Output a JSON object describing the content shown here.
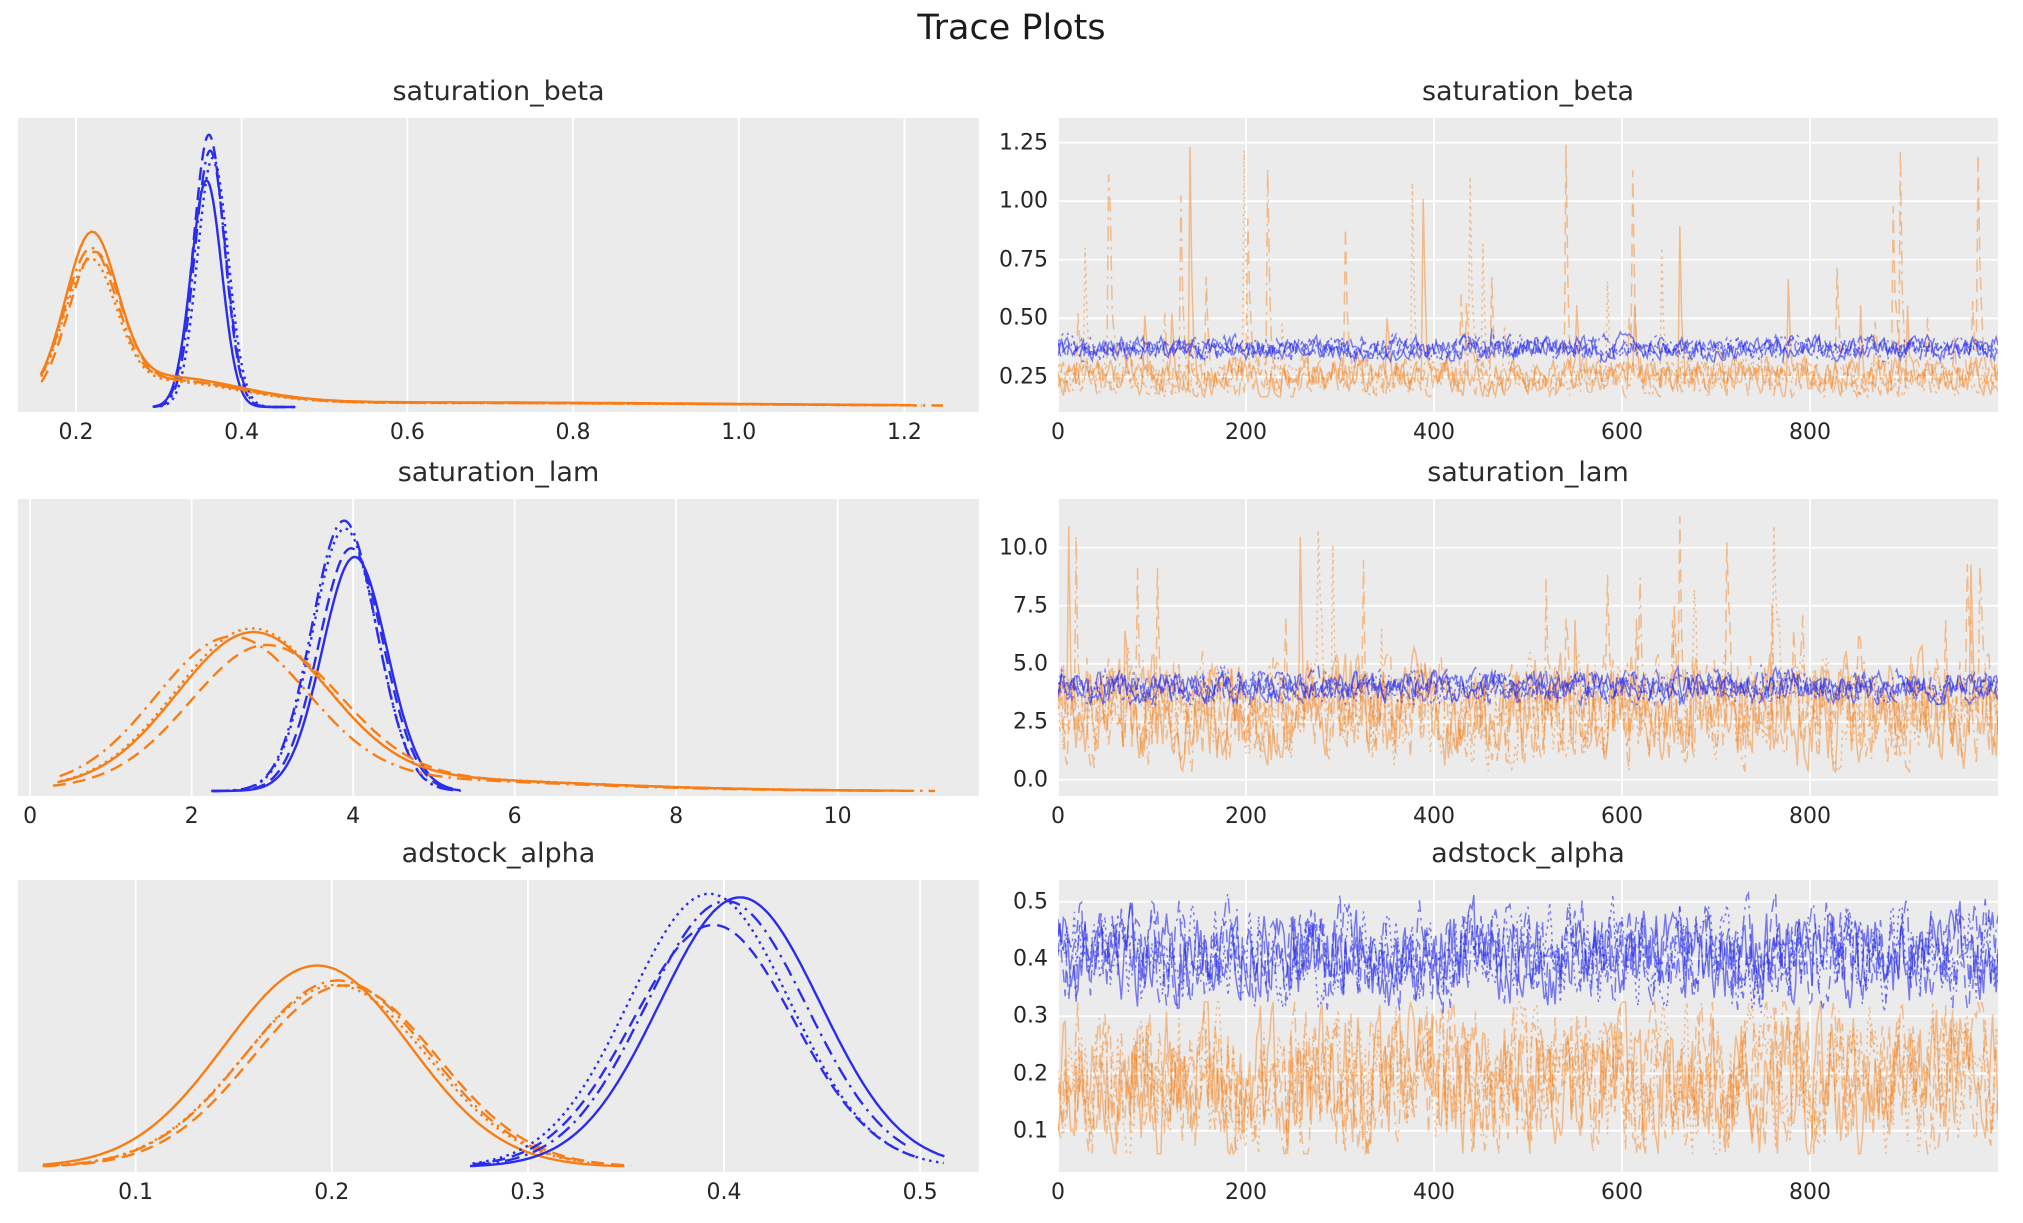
{
  "figure": {
    "title": "Trace Plots"
  },
  "style": {
    "plot_bg": "#ebebeb",
    "grid_color": "#ffffff",
    "text_color": "#262626",
    "chain_group_colors": {
      "blue": "#2a2eec",
      "orange": "#f77e17"
    }
  },
  "chains_per_group": 4,
  "line_styles": [
    "solid",
    "dashed",
    "dotted",
    "dashdot"
  ],
  "chart_data": [
    {
      "type": "line",
      "subtype": "kde",
      "title": "saturation_beta",
      "position": "row-1-left",
      "xlim": [
        0.13,
        1.29
      ],
      "xticks": [
        0.2,
        0.4,
        0.6,
        0.8,
        1.0,
        1.2
      ],
      "xtick_labels": [
        "0.2",
        "0.4",
        "0.6",
        "0.8",
        "1.0",
        "1.2"
      ],
      "grid": "vertical",
      "series": [
        {
          "name": "blue-chains",
          "color": "#2a2eec",
          "opacity": 1,
          "domain": [
            0.293,
            0.465
          ],
          "components": [
            {
              "mu": 0.362,
              "sd": 0.0185,
              "h": 0.9
            }
          ]
        },
        {
          "name": "orange-chains",
          "color": "#f77e17",
          "opacity": 1,
          "domain": [
            0.152,
            1.285
          ],
          "components": [
            {
              "mu": 0.224,
              "sd": 0.031,
              "h": 0.53
            },
            {
              "mu": 0.31,
              "sd": 0.09,
              "h": 0.09
            },
            {
              "mu": 0.6,
              "sd": 0.45,
              "h": 0.016
            }
          ]
        }
      ]
    },
    {
      "type": "line",
      "subtype": "trace",
      "title": "saturation_beta",
      "position": "row-1-right",
      "xlim": [
        0,
        1000
      ],
      "xticks": [
        0,
        200,
        400,
        600,
        800
      ],
      "xtick_labels": [
        "0",
        "200",
        "400",
        "600",
        "800"
      ],
      "ylim": [
        0.1,
        1.355
      ],
      "yticks": [
        0.25,
        0.5,
        0.75,
        1.0,
        1.25
      ],
      "ytick_labels": [
        "0.25",
        "0.50",
        "0.75",
        "1.00",
        "1.25"
      ],
      "grid": "both",
      "series": [
        {
          "name": "orange-chains",
          "color": "#f77e17",
          "opacity": 0.45,
          "mean": 0.252,
          "noise_sd": 0.031,
          "spike_prob": 0.022,
          "spike_max": 1.29,
          "clip": [
            0.165,
            1.29
          ]
        },
        {
          "name": "blue-chains",
          "color": "#2a2eec",
          "opacity": 0.6,
          "mean": 0.372,
          "noise_sd": 0.019,
          "spike_prob": 0.002,
          "spike_max": 0.55,
          "clip": [
            0.315,
            0.55
          ]
        }
      ]
    },
    {
      "type": "line",
      "subtype": "kde",
      "title": "saturation_lam",
      "position": "row-2-left",
      "xlim": [
        -0.15,
        11.75
      ],
      "xticks": [
        0,
        2,
        4,
        6,
        8,
        10
      ],
      "xtick_labels": [
        "0",
        "2",
        "4",
        "6",
        "8",
        "10"
      ],
      "grid": "vertical",
      "series": [
        {
          "name": "blue-chains",
          "color": "#2a2eec",
          "opacity": 1,
          "domain": [
            2.25,
            5.35
          ],
          "components": [
            {
              "mu": 3.93,
              "sd": 0.4,
              "h": 0.91
            }
          ]
        },
        {
          "name": "orange-chains",
          "color": "#f77e17",
          "opacity": 1,
          "domain": [
            0.3,
            11.45
          ],
          "components": [
            {
              "mu": 2.72,
              "sd": 0.93,
              "h": 0.5
            },
            {
              "mu": 4.2,
              "sd": 2.4,
              "h": 0.045
            }
          ]
        }
      ]
    },
    {
      "type": "line",
      "subtype": "trace",
      "title": "saturation_lam",
      "position": "row-2-right",
      "xlim": [
        0,
        1000
      ],
      "xticks": [
        0,
        200,
        400,
        600,
        800
      ],
      "xtick_labels": [
        "0",
        "200",
        "400",
        "600",
        "800"
      ],
      "ylim": [
        -0.7,
        12.1
      ],
      "yticks": [
        0.0,
        2.5,
        5.0,
        7.5,
        10.0
      ],
      "ytick_labels": [
        "0.0",
        "2.5",
        "5.0",
        "7.5",
        "10.0"
      ],
      "grid": "both",
      "series": [
        {
          "name": "orange-chains",
          "color": "#f77e17",
          "opacity": 0.45,
          "mean": 2.95,
          "noise_sd": 0.85,
          "spike_prob": 0.025,
          "spike_max": 11.35,
          "clip": [
            0.35,
            11.35
          ]
        },
        {
          "name": "blue-chains",
          "color": "#2a2eec",
          "opacity": 0.6,
          "mean": 4.0,
          "noise_sd": 0.26,
          "spike_prob": 0,
          "spike_max": 5.3,
          "clip": [
            3.25,
            5.3
          ]
        }
      ]
    },
    {
      "type": "line",
      "subtype": "kde",
      "title": "adstock_alpha",
      "position": "row-3-left",
      "xlim": [
        0.04,
        0.53
      ],
      "xticks": [
        0.1,
        0.2,
        0.3,
        0.4,
        0.5
      ],
      "xtick_labels": [
        "0.1",
        "0.2",
        "0.3",
        "0.4",
        "0.5"
      ],
      "grid": "vertical",
      "series": [
        {
          "name": "orange-chains",
          "color": "#f77e17",
          "opacity": 1,
          "domain": [
            0.053,
            0.362
          ],
          "components": [
            {
              "mu": 0.197,
              "sd": 0.047,
              "h": 0.71
            }
          ]
        },
        {
          "name": "blue-chains",
          "color": "#2a2eec",
          "opacity": 1,
          "domain": [
            0.272,
            0.522
          ],
          "components": [
            {
              "mu": 0.402,
              "sd": 0.041,
              "h": 0.92
            }
          ]
        }
      ]
    },
    {
      "type": "line",
      "subtype": "trace",
      "title": "adstock_alpha",
      "position": "row-3-right",
      "xlim": [
        0,
        1000
      ],
      "xticks": [
        0,
        200,
        400,
        600,
        800
      ],
      "xtick_labels": [
        "0",
        "200",
        "400",
        "600",
        "800"
      ],
      "ylim": [
        0.028,
        0.538
      ],
      "yticks": [
        0.1,
        0.2,
        0.3,
        0.4,
        0.5
      ],
      "ytick_labels": [
        "0.1",
        "0.2",
        "0.3",
        "0.4",
        "0.5"
      ],
      "grid": "both",
      "series": [
        {
          "name": "orange-chains",
          "color": "#f77e17",
          "opacity": 0.45,
          "mean": 0.188,
          "noise_sd": 0.048,
          "spike_prob": 0,
          "spike_max": 0.33,
          "clip": [
            0.06,
            0.325
          ]
        },
        {
          "name": "blue-chains",
          "color": "#2a2eec",
          "opacity": 0.6,
          "mean": 0.408,
          "noise_sd": 0.032,
          "spike_prob": 0,
          "spike_max": 0.52,
          "clip": [
            0.305,
            0.515
          ]
        }
      ]
    }
  ]
}
